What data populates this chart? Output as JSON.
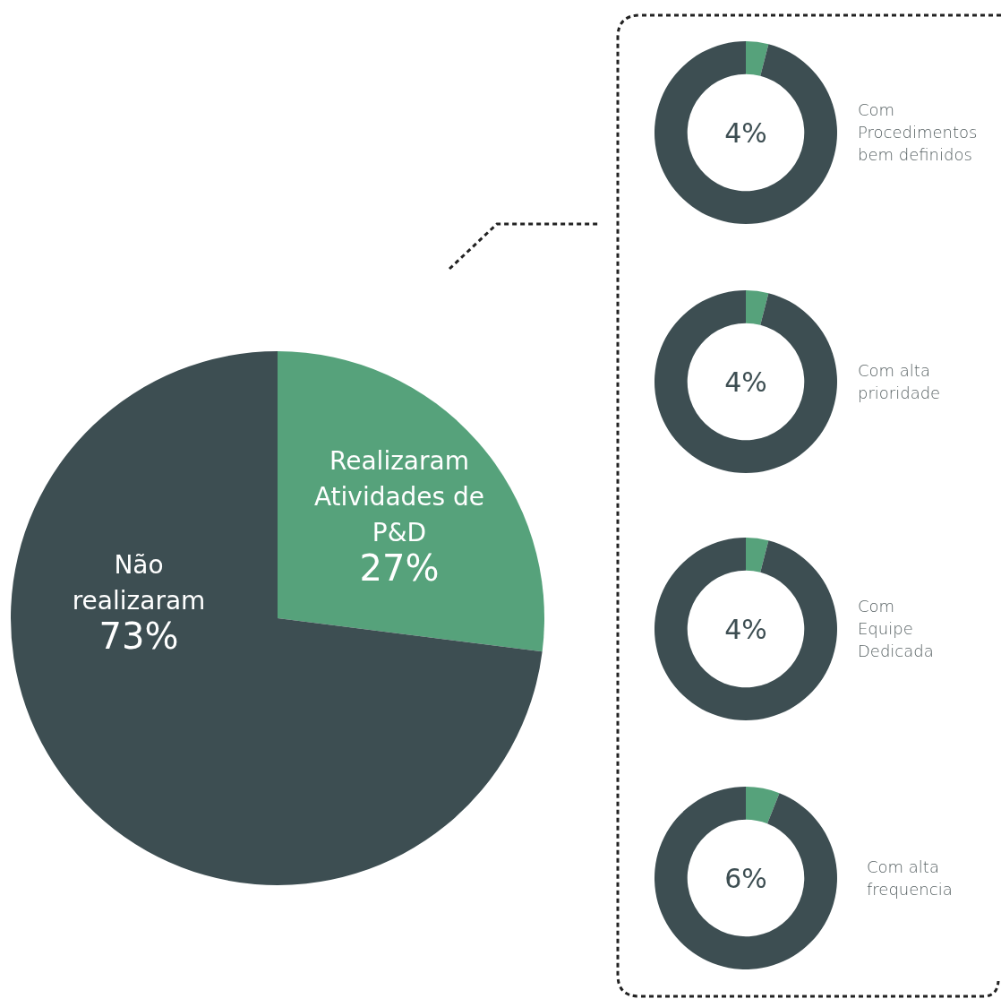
{
  "chart_data": [
    {
      "type": "pie",
      "categories": [
        "Realizaram Atividades de P&D",
        "Não realizaram"
      ],
      "values": [
        27,
        73
      ],
      "colors": [
        "#56a27b",
        "#3d4e52"
      ],
      "value_labels": [
        "27%",
        "73%"
      ]
    },
    {
      "type": "donut",
      "title": "Com\nProcedimentos\nbem definidos",
      "categories": [
        null,
        null
      ],
      "values": [
        4,
        96
      ],
      "colors": [
        "#56a27b",
        "#3d4e52"
      ],
      "annotations": [
        "4%"
      ]
    },
    {
      "type": "donut",
      "title": "Com alta\nprioridade",
      "categories": [
        null,
        null
      ],
      "values": [
        4,
        96
      ],
      "colors": [
        "#56a27b",
        "#3d4e52"
      ],
      "annotations": [
        "4%"
      ]
    },
    {
      "type": "donut",
      "title": "Com\nEquipe\nDedicada",
      "categories": [
        null,
        null
      ],
      "values": [
        4,
        96
      ],
      "colors": [
        "#56a27b",
        "#3d4e52"
      ],
      "annotations": [
        "4%"
      ]
    },
    {
      "type": "donut",
      "title": "Com alta\nfrequencia",
      "categories": [
        null,
        null
      ],
      "values": [
        6,
        94
      ],
      "colors": [
        "#56a27b",
        "#3d4e52"
      ],
      "annotations": [
        "6%"
      ]
    }
  ]
}
